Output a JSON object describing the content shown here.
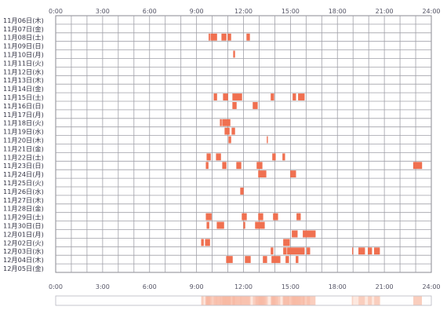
{
  "chart_data": {
    "type": "heatmap",
    "title": "",
    "x_unit": "hour of day",
    "xlim": [
      0,
      24
    ],
    "x_ticks": [
      "0:00",
      "3:00",
      "6:00",
      "9:00",
      "12:00",
      "15:00",
      "18:00",
      "21:00",
      "24:00"
    ],
    "rows": [
      {
        "label": "11月06日(木)",
        "segments": []
      },
      {
        "label": "11月07日(金)",
        "segments": []
      },
      {
        "label": "11月08日(土)",
        "segments": [
          [
            9.78,
            9.85
          ],
          [
            9.9,
            10.3
          ],
          [
            10.6,
            10.9
          ],
          [
            11.0,
            11.2
          ],
          [
            12.2,
            12.4
          ]
        ]
      },
      {
        "label": "11月09日(日)",
        "segments": []
      },
      {
        "label": "11月10日(月)",
        "segments": [
          [
            11.35,
            11.45
          ]
        ]
      },
      {
        "label": "11月11日(火)",
        "segments": []
      },
      {
        "label": "11月12日(水)",
        "segments": []
      },
      {
        "label": "11月13日(木)",
        "segments": []
      },
      {
        "label": "11月14日(金)",
        "segments": []
      },
      {
        "label": "11月15日(土)",
        "segments": [
          [
            10.1,
            10.3
          ],
          [
            10.7,
            11.0
          ],
          [
            11.3,
            11.9
          ],
          [
            13.75,
            13.95
          ],
          [
            15.15,
            15.35
          ],
          [
            15.5,
            15.9
          ]
        ]
      },
      {
        "label": "11月16日(日)",
        "segments": [
          [
            11.3,
            11.55
          ],
          [
            12.6,
            12.9
          ]
        ]
      },
      {
        "label": "11月17日(月)",
        "segments": []
      },
      {
        "label": "11月18日(火)",
        "segments": [
          [
            10.5,
            10.6
          ],
          [
            10.65,
            11.15
          ]
        ]
      },
      {
        "label": "11月19日(水)",
        "segments": [
          [
            10.8,
            11.1
          ],
          [
            11.25,
            11.45
          ]
        ]
      },
      {
        "label": "11月20日(木)",
        "segments": [
          [
            11.05,
            11.2
          ],
          [
            13.5,
            13.55
          ]
        ]
      },
      {
        "label": "11月21日(金)",
        "segments": []
      },
      {
        "label": "11月22日(土)",
        "segments": [
          [
            9.65,
            9.9
          ],
          [
            10.25,
            10.55
          ],
          [
            13.85,
            14.05
          ],
          [
            14.5,
            14.65
          ]
        ]
      },
      {
        "label": "11月23日(日)",
        "segments": [
          [
            9.6,
            9.75
          ],
          [
            10.65,
            10.9
          ],
          [
            11.55,
            11.85
          ],
          [
            12.85,
            13.2
          ],
          [
            22.85,
            23.4
          ]
        ]
      },
      {
        "label": "11月24日(月)",
        "segments": [
          [
            12.95,
            13.45
          ],
          [
            15.0,
            15.35
          ]
        ]
      },
      {
        "label": "11月25日(火)",
        "segments": []
      },
      {
        "label": "11月26日(水)",
        "segments": [
          [
            11.8,
            12.0
          ]
        ]
      },
      {
        "label": "11月27日(木)",
        "segments": []
      },
      {
        "label": "11月28日(金)",
        "segments": []
      },
      {
        "label": "11月29日(土)",
        "segments": [
          [
            9.6,
            9.95
          ],
          [
            11.9,
            12.2
          ],
          [
            12.95,
            13.25
          ],
          [
            13.9,
            14.2
          ],
          [
            15.4,
            15.65
          ]
        ]
      },
      {
        "label": "11月30日(日)",
        "segments": [
          [
            9.65,
            9.8
          ],
          [
            10.3,
            10.75
          ],
          [
            12.0,
            12.1
          ],
          [
            12.75,
            13.35
          ]
        ]
      },
      {
        "label": "12月01日(月)",
        "segments": [
          [
            15.1,
            15.45
          ],
          [
            15.8,
            16.6
          ]
        ]
      },
      {
        "label": "12月02日(火)",
        "segments": [
          [
            9.3,
            9.45
          ],
          [
            9.55,
            9.85
          ],
          [
            14.55,
            14.95
          ]
        ]
      },
      {
        "label": "12月03日(水)",
        "segments": [
          [
            13.75,
            13.9
          ],
          [
            14.55,
            14.75
          ],
          [
            14.8,
            15.9
          ],
          [
            16.05,
            16.25
          ],
          [
            18.95,
            19.0
          ],
          [
            19.35,
            19.75
          ],
          [
            19.95,
            20.2
          ],
          [
            20.35,
            20.7
          ]
        ]
      },
      {
        "label": "12月04日(木)",
        "segments": [
          [
            10.9,
            11.3
          ],
          [
            12.1,
            12.45
          ],
          [
            13.25,
            13.5
          ],
          [
            13.8,
            14.35
          ],
          [
            14.7,
            14.9
          ],
          [
            15.35,
            15.5
          ]
        ]
      },
      {
        "label": "12月05日(金)",
        "segments": []
      }
    ],
    "summary_strip": {
      "type": "density",
      "segments": [
        [
          9.3,
          16.6
        ],
        [
          18.9,
          20.75
        ],
        [
          22.85,
          23.4
        ]
      ]
    },
    "colors": {
      "bar": "#f07050",
      "bar_edge": "#e85a3a",
      "grid": "#a0a0a8",
      "frame": "#888890",
      "strip_light": "#fde8df",
      "strip_dark": "#f7b8a2"
    }
  }
}
